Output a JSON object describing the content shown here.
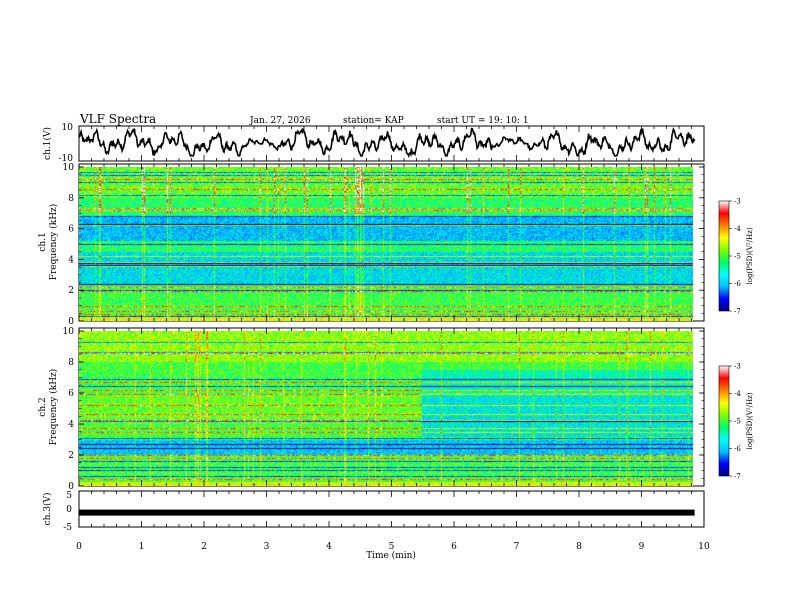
{
  "header": {
    "title": "VLF Spectra",
    "date": "Jan. 27, 2026",
    "station": "station= KAP",
    "start": "start  UT =   19: 10: 1"
  },
  "colors": {
    "waveform": "#000000",
    "colormap": [
      "#000080",
      "#0000ff",
      "#00c0ff",
      "#00ffff",
      "#00ff60",
      "#80ff00",
      "#ffff00",
      "#ff8000",
      "#ff0000",
      "#ffffff"
    ]
  },
  "chart_data": [
    {
      "id": "ch1-waveform",
      "type": "line",
      "ylabel": "ch.1(V)",
      "ylim": [
        -10,
        10
      ],
      "yticks": [
        "10",
        "-10"
      ],
      "xlim": [
        0,
        9.85
      ],
      "description_values": "noisy waveform oscillating roughly between -6 and 7 V"
    },
    {
      "id": "ch1-spectrogram",
      "type": "heatmap",
      "ylabel": "Frequency (kHz)",
      "channel": "ch.1",
      "ylim": [
        0,
        10
      ],
      "yticks": [
        "0",
        "2",
        "4",
        "6",
        "8",
        "10"
      ],
      "xlim": [
        0,
        9.85
      ],
      "colorbar": {
        "label": "log(PSD)(V²/Hz)",
        "range": [
          -7,
          -3
        ],
        "ticks": [
          "-3",
          "-4",
          "-5",
          "-6",
          "-7"
        ]
      }
    },
    {
      "id": "ch2-spectrogram",
      "type": "heatmap",
      "ylabel": "Frequency (kHz)",
      "channel": "ch.2",
      "ylim": [
        0,
        10
      ],
      "yticks": [
        "0",
        "2",
        "4",
        "6",
        "8",
        "10"
      ],
      "xlim": [
        0,
        9.85
      ],
      "change_time_min": 5.5,
      "colorbar": {
        "label": "log(PSD)(V²/Hz)",
        "range": [
          -7,
          -3
        ],
        "ticks": [
          "-3",
          "-4",
          "-5",
          "-6",
          "-7"
        ]
      }
    },
    {
      "id": "ch3-trace",
      "type": "line",
      "ylabel": "ch.3(V)",
      "ylim": [
        -5,
        5
      ],
      "yticks": [
        "5",
        "0",
        "-5"
      ],
      "xlim": [
        0,
        9.85
      ],
      "constant_value": -1
    }
  ],
  "xaxis": {
    "label": "Time  (min)",
    "range": [
      0,
      10
    ],
    "ticks": [
      "0",
      "1",
      "2",
      "3",
      "4",
      "5",
      "6",
      "7",
      "8",
      "9",
      "10"
    ]
  }
}
